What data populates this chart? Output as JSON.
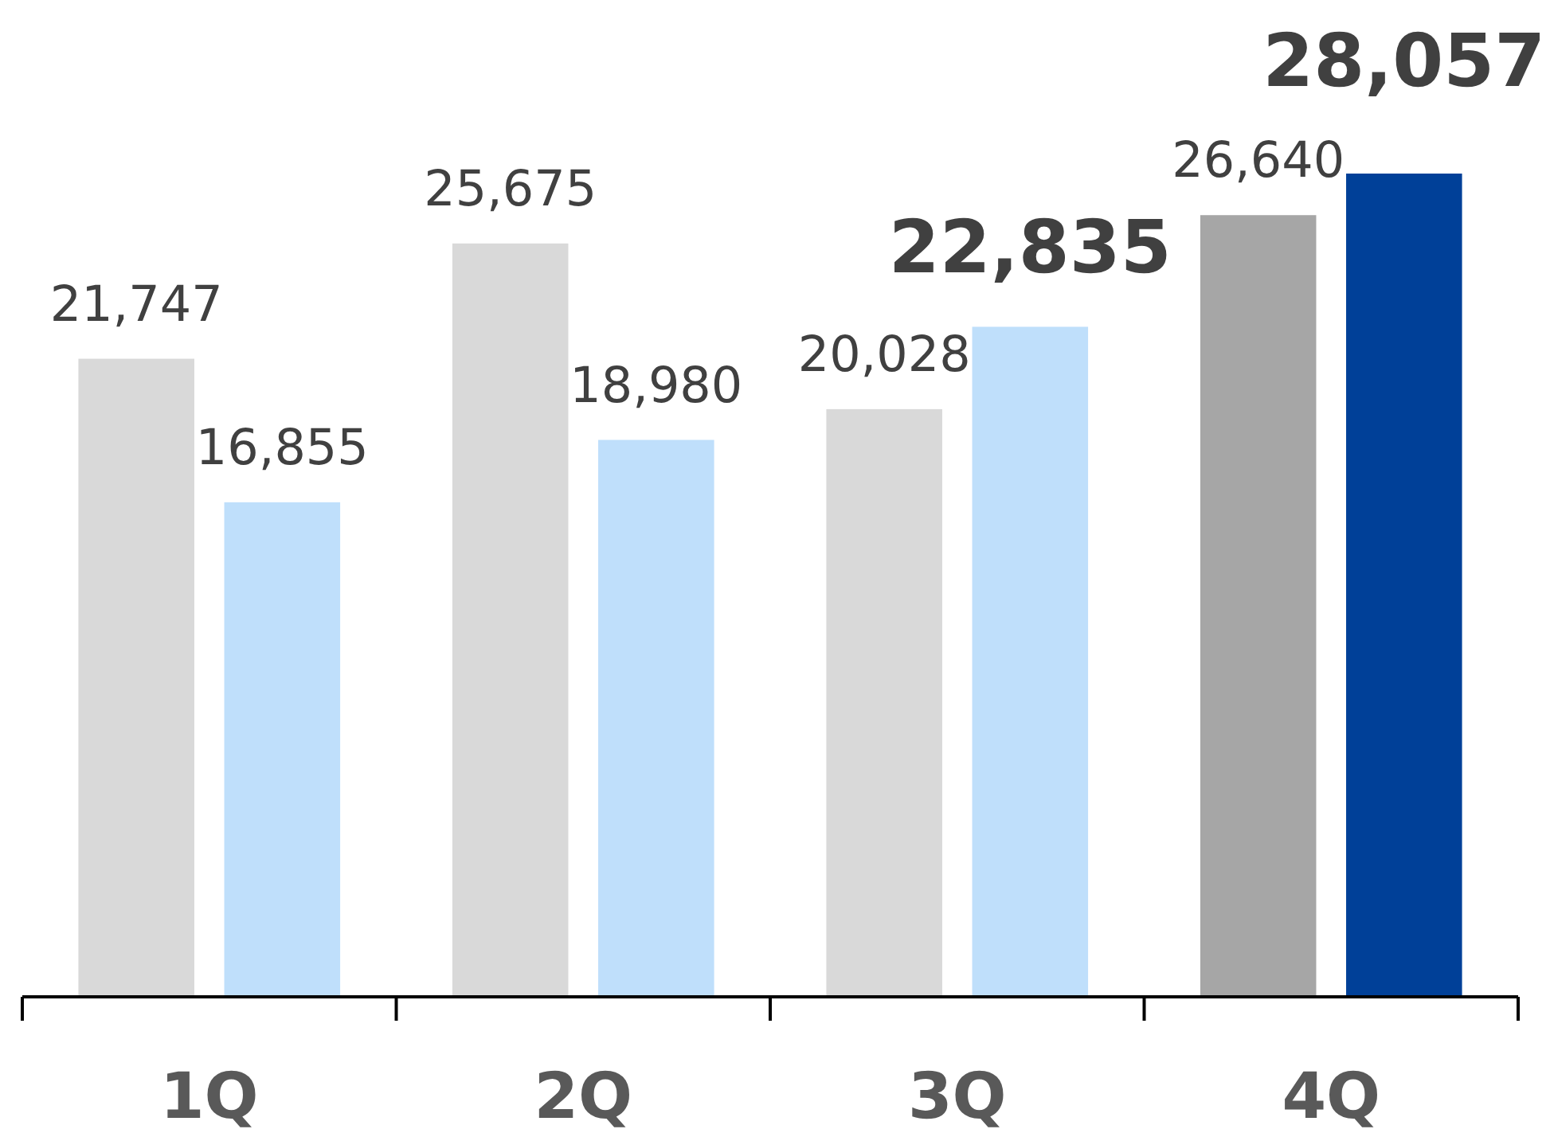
{
  "chart_data": {
    "type": "bar",
    "categories": [
      "1Q",
      "2Q",
      "3Q",
      "4Q"
    ],
    "series": [
      {
        "colors": [
          "#d9d9d9",
          "#d9d9d9",
          "#d9d9d9",
          "#a6a6a6"
        ],
        "values": [
          21747,
          25675,
          20028,
          26640
        ],
        "value_labels": [
          "21,747",
          "25,675",
          "20,028",
          "26,640"
        ]
      },
      {
        "colors": [
          "#bfdffb",
          "#bfdffb",
          "#bfdffb",
          "#004098"
        ],
        "values": [
          16855,
          18980,
          22835,
          28057
        ],
        "value_labels": [
          "16,855",
          "18,980",
          null,
          null
        ]
      }
    ],
    "annotations": [
      "22,835",
      "28,057"
    ]
  }
}
